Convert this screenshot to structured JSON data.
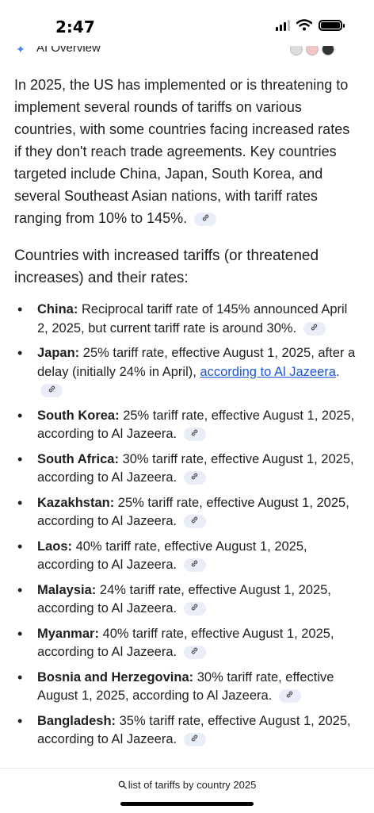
{
  "status_bar": {
    "time": "2:47"
  },
  "header": {
    "title": "AI Overview"
  },
  "intro": "In 2025, the US has implemented or is threatening to implement several rounds of tariffs on various countries, with some countries facing increased rates if they don't reach trade agreements. Key countries targeted include China, Japan, South Korea, and several Southeast Asian nations, with tariff rates ranging from 10% to 145%.",
  "section_heading": "Countries with increased tariffs (or threatened increases) and their rates:",
  "items": [
    {
      "country": "China:",
      "text": "Reciprocal tariff rate of 145% announced April 2, 2025, but current tariff rate is around 30%."
    },
    {
      "country": "Japan:",
      "text": "25% tariff rate, effective August 1, 2025, after a delay (initially 24% in April), ",
      "link": "according to Al Jazeera",
      "tail": "."
    },
    {
      "country": "South Korea:",
      "text": "25% tariff rate, effective August 1, 2025, according to Al Jazeera."
    },
    {
      "country": "South Africa:",
      "text": "30% tariff rate, effective August 1, 2025, according to Al Jazeera."
    },
    {
      "country": "Kazakhstan:",
      "text": "25% tariff rate, effective August 1, 2025, according to Al Jazeera."
    },
    {
      "country": "Laos:",
      "text": "40% tariff rate, effective August 1, 2025, according to Al Jazeera."
    },
    {
      "country": "Malaysia:",
      "text": "24% tariff rate, effective August 1, 2025, according to Al Jazeera."
    },
    {
      "country": "Myanmar:",
      "text": "40% tariff rate, effective August 1, 2025, according to Al Jazeera."
    },
    {
      "country": "Bosnia and Herzegovina:",
      "text": "30% tariff rate, effective August 1, 2025, according to Al Jazeera."
    },
    {
      "country": "Bangladesh:",
      "text": "35% tariff rate, effective August 1, 2025, according to Al Jazeera."
    }
  ],
  "bottom": {
    "query": "list of tariffs by country 2025"
  },
  "icons": {
    "link": "link-icon",
    "search": "search-icon",
    "sparkle": "sparkle-icon"
  },
  "colors": {
    "link": "#1a56d6",
    "chip": "#e8edf8"
  }
}
